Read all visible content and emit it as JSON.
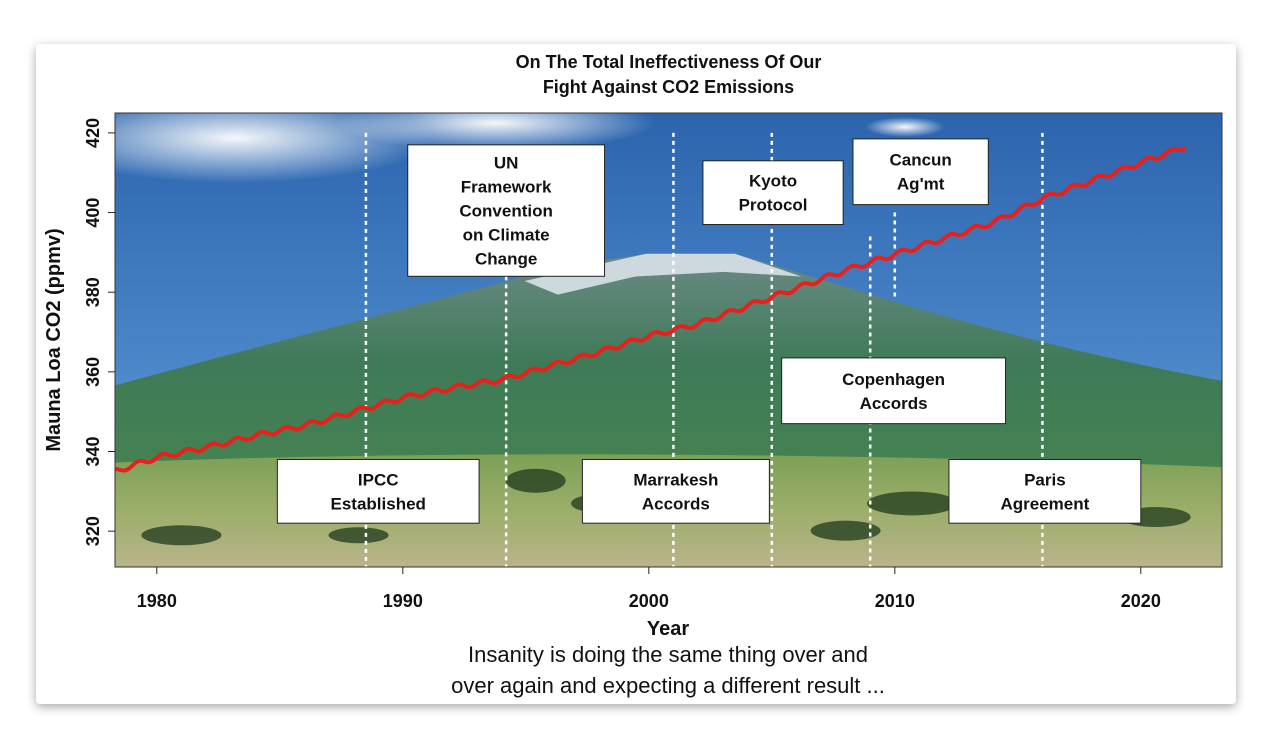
{
  "chart_data": {
    "type": "line",
    "title": [
      "On The Total Ineffectiveness Of Our",
      "Fight Against CO2 Emissions"
    ],
    "xlabel": "Year",
    "ylabel": "Mauna Loa CO2 (ppmv)",
    "xlim": [
      1978.3,
      2023.3
    ],
    "ylim": [
      311,
      425
    ],
    "xticks": [
      1980,
      1990,
      2000,
      2010,
      2020
    ],
    "yticks": [
      320,
      340,
      360,
      380,
      400,
      420
    ],
    "series": [
      {
        "color": "#e8201c",
        "x": [
          1978.3,
          1980,
          1982,
          1984,
          1986,
          1988,
          1990,
          1992,
          1994,
          1996,
          1998,
          2000,
          2002,
          2004,
          2006,
          2008,
          2010,
          2012,
          2014,
          2016,
          2018,
          2020,
          2021.8
        ],
        "y": [
          335,
          338.5,
          341,
          344,
          346.5,
          350,
          353.5,
          356,
          358,
          361.5,
          365,
          369,
          372,
          376.5,
          381,
          385.5,
          389.5,
          393.5,
          397.5,
          403.5,
          408,
          412.5,
          416.5
        ]
      }
    ],
    "events": [
      {
        "year": 1988.5,
        "line_top": 420,
        "line_bottom": 311
      },
      {
        "year": 1994.2,
        "line_top": 392,
        "line_bottom": 311
      },
      {
        "year": 2001.0,
        "line_top": 420,
        "line_bottom": 311
      },
      {
        "year": 2005.0,
        "line_top": 420,
        "line_bottom": 311
      },
      {
        "year": 2009.0,
        "line_top": 394,
        "line_bottom": 311
      },
      {
        "year": 2010.0,
        "line_top": 400,
        "line_bottom": 378
      },
      {
        "year": 2016.0,
        "line_top": 420,
        "line_bottom": 311
      }
    ],
    "annotations": [
      {
        "lines": [
          "IPCC",
          "Established"
        ],
        "x0": 1984.9,
        "x1": 1993.1,
        "y0": 322,
        "y1": 338
      },
      {
        "lines": [
          "UN",
          "Framework",
          "Convention",
          "on Climate",
          "Change"
        ],
        "x0": 1990.2,
        "x1": 1998.2,
        "y0": 384,
        "y1": 417
      },
      {
        "lines": [
          "Marrakesh",
          "Accords"
        ],
        "x0": 1997.3,
        "x1": 2004.9,
        "y0": 322,
        "y1": 338
      },
      {
        "lines": [
          "Kyoto",
          "Protocol"
        ],
        "x0": 2002.2,
        "x1": 2007.9,
        "y0": 397,
        "y1": 413
      },
      {
        "lines": [
          "Cancun",
          "Ag'mt"
        ],
        "x0": 2008.3,
        "x1": 2013.8,
        "y0": 402,
        "y1": 418.5
      },
      {
        "lines": [
          "Copenhagen",
          "Accords"
        ],
        "x0": 2005.4,
        "x1": 2014.5,
        "y0": 347,
        "y1": 363.5
      },
      {
        "lines": [
          "Paris",
          "Agreement"
        ],
        "x0": 2012.2,
        "x1": 2020.0,
        "y0": 322,
        "y1": 338
      }
    ],
    "caption": [
      "Insanity is doing the same thing over and",
      "over again and expecting a different result ..."
    ],
    "grid": false,
    "background": "mountain landscape photo"
  }
}
